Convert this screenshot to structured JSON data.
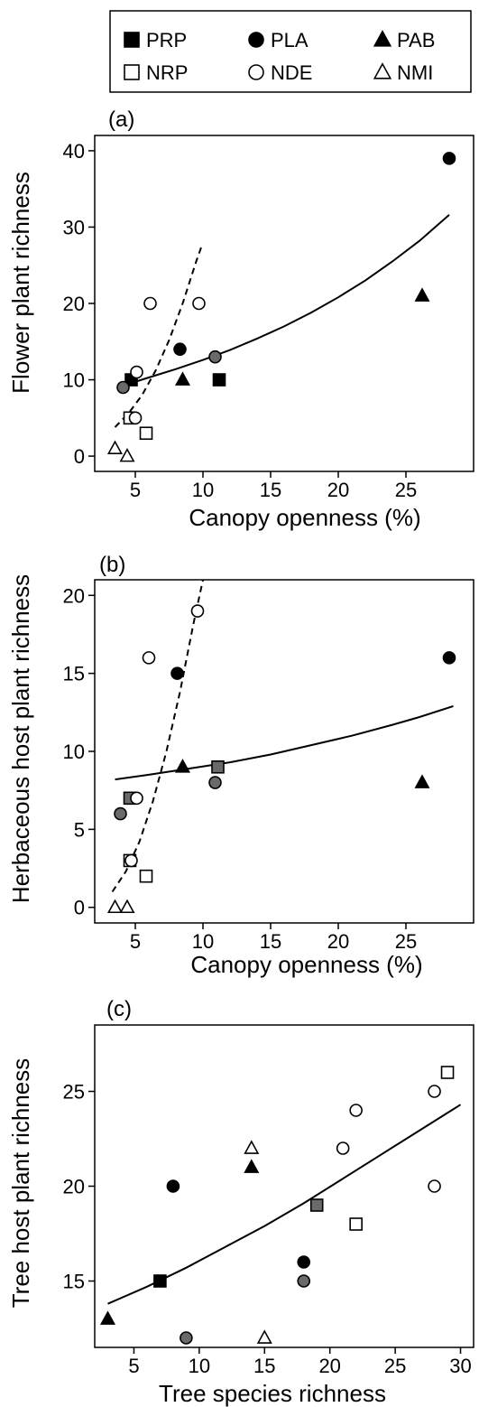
{
  "legend": {
    "items": [
      {
        "label": "PRP",
        "marker": "square",
        "fill": "#000000"
      },
      {
        "label": "PLA",
        "marker": "circle",
        "fill": "#000000"
      },
      {
        "label": "PAB",
        "marker": "triangle",
        "fill": "#000000"
      },
      {
        "label": "NRP",
        "marker": "square",
        "fill": "#ffffff"
      },
      {
        "label": "NDE",
        "marker": "circle",
        "fill": "#ffffff"
      },
      {
        "label": "NMI",
        "marker": "triangle",
        "fill": "#ffffff"
      }
    ]
  },
  "chart_data": [
    {
      "panel": "(a)",
      "type": "scatter",
      "xlabel": "Canopy openness (%)",
      "ylabel": "Flower plant richness",
      "xlim": [
        2,
        30
      ],
      "ylim": [
        -2,
        42
      ],
      "xticks": [
        5,
        10,
        15,
        20,
        25
      ],
      "yticks": [
        0,
        10,
        20,
        30,
        40
      ],
      "grid": false,
      "points": [
        {
          "x": 4.7,
          "y": 10,
          "group": "PRP",
          "shade": false
        },
        {
          "x": 11.2,
          "y": 10,
          "group": "PRP",
          "shade": false
        },
        {
          "x": 8.3,
          "y": 14,
          "group": "PLA",
          "shade": false
        },
        {
          "x": 4.1,
          "y": 9,
          "group": "PLA",
          "shade": true
        },
        {
          "x": 10.9,
          "y": 13,
          "group": "PLA",
          "shade": true
        },
        {
          "x": 28.2,
          "y": 39,
          "group": "PLA",
          "shade": false
        },
        {
          "x": 8.5,
          "y": 10,
          "group": "PAB",
          "shade": false
        },
        {
          "x": 26.2,
          "y": 21,
          "group": "PAB",
          "shade": false
        },
        {
          "x": 4.6,
          "y": 5,
          "group": "NRP",
          "shade": false
        },
        {
          "x": 5.8,
          "y": 3,
          "group": "NRP",
          "shade": false
        },
        {
          "x": 5.1,
          "y": 11,
          "group": "NDE",
          "shade": false
        },
        {
          "x": 5.0,
          "y": 5,
          "group": "NDE",
          "shade": false
        },
        {
          "x": 6.1,
          "y": 20,
          "group": "NDE",
          "shade": false
        },
        {
          "x": 9.7,
          "y": 20,
          "group": "NDE",
          "shade": false
        },
        {
          "x": 3.5,
          "y": 1,
          "group": "NMI",
          "shade": false
        },
        {
          "x": 4.4,
          "y": 0,
          "group": "NMI",
          "shade": false
        }
      ],
      "fits": [
        {
          "style": "solid",
          "x": [
            4.2,
            6,
            8,
            10,
            12,
            14,
            16,
            18,
            20,
            22,
            24,
            26,
            28.2
          ],
          "y": [
            9.3,
            10.3,
            11.4,
            12.6,
            13.9,
            15.4,
            17.0,
            18.8,
            20.8,
            23.0,
            25.5,
            28.2,
            31.6
          ]
        },
        {
          "style": "dashed",
          "x": [
            3.5,
            4.5,
            5.5,
            6.5,
            7.5,
            8.5,
            9.5,
            9.9
          ],
          "y": [
            3.8,
            5.6,
            8.0,
            11.2,
            15.2,
            20.0,
            25.5,
            27.5
          ]
        }
      ]
    },
    {
      "panel": "(b)",
      "type": "scatter",
      "xlabel": "Canopy openness (%)",
      "ylabel": "Herbaceous host plant richness",
      "xlim": [
        2,
        30
      ],
      "ylim": [
        -1,
        21
      ],
      "xticks": [
        5,
        10,
        15,
        20,
        25
      ],
      "yticks": [
        0,
        5,
        10,
        15,
        20
      ],
      "grid": false,
      "points": [
        {
          "x": 4.6,
          "y": 7,
          "group": "PRP",
          "shade": true
        },
        {
          "x": 11.1,
          "y": 9,
          "group": "PRP",
          "shade": true
        },
        {
          "x": 8.1,
          "y": 15,
          "group": "PLA",
          "shade": false
        },
        {
          "x": 3.9,
          "y": 6,
          "group": "PLA",
          "shade": true
        },
        {
          "x": 10.9,
          "y": 8,
          "group": "PLA",
          "shade": true
        },
        {
          "x": 28.2,
          "y": 16,
          "group": "PLA",
          "shade": false
        },
        {
          "x": 8.5,
          "y": 9,
          "group": "PAB",
          "shade": false
        },
        {
          "x": 26.2,
          "y": 8,
          "group": "PAB",
          "shade": false
        },
        {
          "x": 4.6,
          "y": 3,
          "group": "NRP",
          "shade": false
        },
        {
          "x": 5.8,
          "y": 2,
          "group": "NRP",
          "shade": false
        },
        {
          "x": 5.1,
          "y": 7,
          "group": "NDE",
          "shade": false
        },
        {
          "x": 4.7,
          "y": 3,
          "group": "NDE",
          "shade": false
        },
        {
          "x": 6.0,
          "y": 16,
          "group": "NDE",
          "shade": false
        },
        {
          "x": 9.6,
          "y": 19,
          "group": "NDE",
          "shade": false
        },
        {
          "x": 3.5,
          "y": 0,
          "group": "NMI",
          "shade": false
        },
        {
          "x": 4.4,
          "y": 0,
          "group": "NMI",
          "shade": false
        }
      ],
      "fits": [
        {
          "style": "solid",
          "x": [
            3.5,
            6,
            9,
            12,
            15,
            18,
            21,
            24,
            26,
            28.5
          ],
          "y": [
            8.2,
            8.5,
            8.9,
            9.3,
            9.8,
            10.4,
            11.0,
            11.7,
            12.2,
            12.9
          ]
        },
        {
          "style": "dashed",
          "x": [
            3.3,
            4.3,
            5.3,
            6.3,
            7.3,
            8.3,
            9.3,
            10.0
          ],
          "y": [
            1.0,
            2.3,
            4.2,
            6.8,
            10.0,
            13.8,
            18.2,
            21.0
          ]
        }
      ]
    },
    {
      "panel": "(c)",
      "type": "scatter",
      "xlabel": "Tree species richness",
      "ylabel": "Tree host plant richness",
      "xlim": [
        2,
        31
      ],
      "ylim": [
        11.5,
        28.5
      ],
      "xticks": [
        5,
        10,
        15,
        20,
        25,
        30
      ],
      "yticks": [
        15,
        20,
        25
      ],
      "grid": false,
      "points": [
        {
          "x": 7,
          "y": 15,
          "group": "PRP",
          "shade": false
        },
        {
          "x": 19,
          "y": 19,
          "group": "PRP",
          "shade": true
        },
        {
          "x": 8,
          "y": 20,
          "group": "PLA",
          "shade": false
        },
        {
          "x": 18,
          "y": 16,
          "group": "PLA",
          "shade": false
        },
        {
          "x": 18,
          "y": 15,
          "group": "PLA",
          "shade": true
        },
        {
          "x": 9,
          "y": 12,
          "group": "PLA",
          "shade": true
        },
        {
          "x": 3,
          "y": 13,
          "group": "PAB",
          "shade": false
        },
        {
          "x": 14,
          "y": 21,
          "group": "PAB",
          "shade": false
        },
        {
          "x": 22,
          "y": 18,
          "group": "NRP",
          "shade": false
        },
        {
          "x": 29,
          "y": 26,
          "group": "NRP",
          "shade": false
        },
        {
          "x": 21,
          "y": 22,
          "group": "NDE",
          "shade": false
        },
        {
          "x": 22,
          "y": 24,
          "group": "NDE",
          "shade": false
        },
        {
          "x": 28,
          "y": 25,
          "group": "NDE",
          "shade": false
        },
        {
          "x": 28,
          "y": 20,
          "group": "NDE",
          "shade": false
        },
        {
          "x": 14,
          "y": 22,
          "group": "NMI",
          "shade": false
        },
        {
          "x": 15,
          "y": 12,
          "group": "NMI",
          "shade": false
        }
      ],
      "fits": [
        {
          "style": "solid",
          "x": [
            3,
            6,
            9,
            12,
            15,
            18,
            21,
            24,
            27,
            30
          ],
          "y": [
            13.8,
            14.7,
            15.7,
            16.8,
            17.9,
            19.1,
            20.4,
            21.7,
            23.0,
            24.3
          ]
        }
      ]
    }
  ]
}
